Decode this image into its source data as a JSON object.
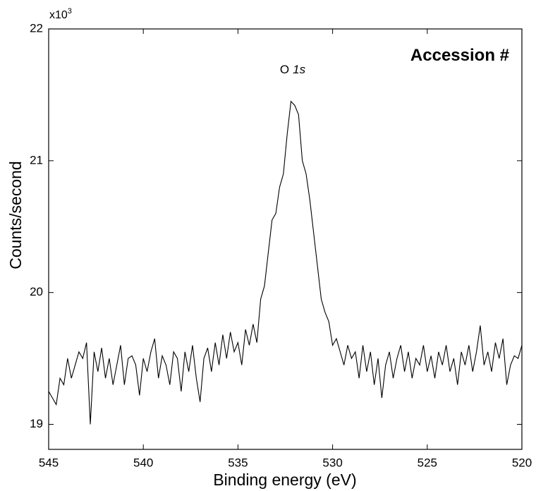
{
  "chart_data": {
    "type": "line",
    "x_label": "Binding energy (eV)",
    "y_label": "Counts/second",
    "y_scale_label": "x10",
    "y_scale_exponent": "3",
    "annotation": "Accession #",
    "peak_label": {
      "element": "O",
      "orbital": "1s"
    },
    "color": "#000000",
    "xlim": [
      545,
      520
    ],
    "xticks": [
      545,
      540,
      535,
      530,
      525,
      520
    ],
    "ylim": [
      18.81,
      22
    ],
    "yticks": [
      19,
      20,
      21,
      22
    ],
    "x": [
      545.0,
      544.8,
      544.6,
      544.4,
      544.2,
      544.0,
      543.8,
      543.6,
      543.4,
      543.2,
      543.0,
      542.8,
      542.6,
      542.4,
      542.2,
      542.0,
      541.8,
      541.6,
      541.4,
      541.2,
      541.0,
      540.8,
      540.6,
      540.4,
      540.2,
      540.0,
      539.8,
      539.6,
      539.4,
      539.2,
      539.0,
      538.8,
      538.6,
      538.4,
      538.2,
      538.0,
      537.8,
      537.6,
      537.4,
      537.2,
      537.0,
      536.8,
      536.6,
      536.4,
      536.2,
      536.0,
      535.8,
      535.6,
      535.4,
      535.2,
      535.0,
      534.8,
      534.6,
      534.4,
      534.2,
      534.0,
      533.8,
      533.6,
      533.4,
      533.2,
      533.0,
      532.8,
      532.6,
      532.4,
      532.2,
      532.0,
      531.8,
      531.6,
      531.4,
      531.2,
      531.0,
      530.8,
      530.6,
      530.4,
      530.2,
      530.0,
      529.8,
      529.6,
      529.4,
      529.2,
      529.0,
      528.8,
      528.6,
      528.4,
      528.2,
      528.0,
      527.8,
      527.6,
      527.4,
      527.2,
      527.0,
      526.8,
      526.6,
      526.4,
      526.2,
      526.0,
      525.8,
      525.6,
      525.4,
      525.2,
      525.0,
      524.8,
      524.6,
      524.4,
      524.2,
      524.0,
      523.8,
      523.6,
      523.4,
      523.2,
      523.0,
      522.8,
      522.6,
      522.4,
      522.2,
      522.0,
      521.8,
      521.6,
      521.4,
      521.2,
      521.0,
      520.8,
      520.6,
      520.4,
      520.2,
      520.0
    ],
    "values": [
      19.25,
      19.2,
      19.15,
      19.35,
      19.3,
      19.5,
      19.35,
      19.45,
      19.55,
      19.5,
      19.62,
      19.0,
      19.55,
      19.4,
      19.58,
      19.35,
      19.5,
      19.3,
      19.45,
      19.6,
      19.3,
      19.5,
      19.52,
      19.45,
      19.22,
      19.5,
      19.4,
      19.55,
      19.65,
      19.35,
      19.52,
      19.45,
      19.3,
      19.55,
      19.5,
      19.25,
      19.55,
      19.4,
      19.6,
      19.35,
      19.17,
      19.5,
      19.58,
      19.4,
      19.62,
      19.45,
      19.68,
      19.5,
      19.7,
      19.55,
      19.62,
      19.45,
      19.72,
      19.6,
      19.76,
      19.62,
      19.95,
      20.05,
      20.3,
      20.55,
      20.6,
      20.8,
      20.9,
      21.2,
      21.45,
      21.42,
      21.35,
      21.0,
      20.9,
      20.7,
      20.45,
      20.2,
      19.95,
      19.85,
      19.78,
      19.6,
      19.65,
      19.55,
      19.45,
      19.6,
      19.5,
      19.55,
      19.35,
      19.6,
      19.4,
      19.55,
      19.3,
      19.5,
      19.2,
      19.45,
      19.55,
      19.35,
      19.5,
      19.6,
      19.4,
      19.55,
      19.35,
      19.5,
      19.45,
      19.6,
      19.4,
      19.52,
      19.35,
      19.55,
      19.45,
      19.6,
      19.4,
      19.5,
      19.3,
      19.55,
      19.45,
      19.6,
      19.4,
      19.55,
      19.75,
      19.45,
      19.55,
      19.4,
      19.62,
      19.5,
      19.65,
      19.3,
      19.45,
      19.52,
      19.5,
      19.6
    ]
  }
}
